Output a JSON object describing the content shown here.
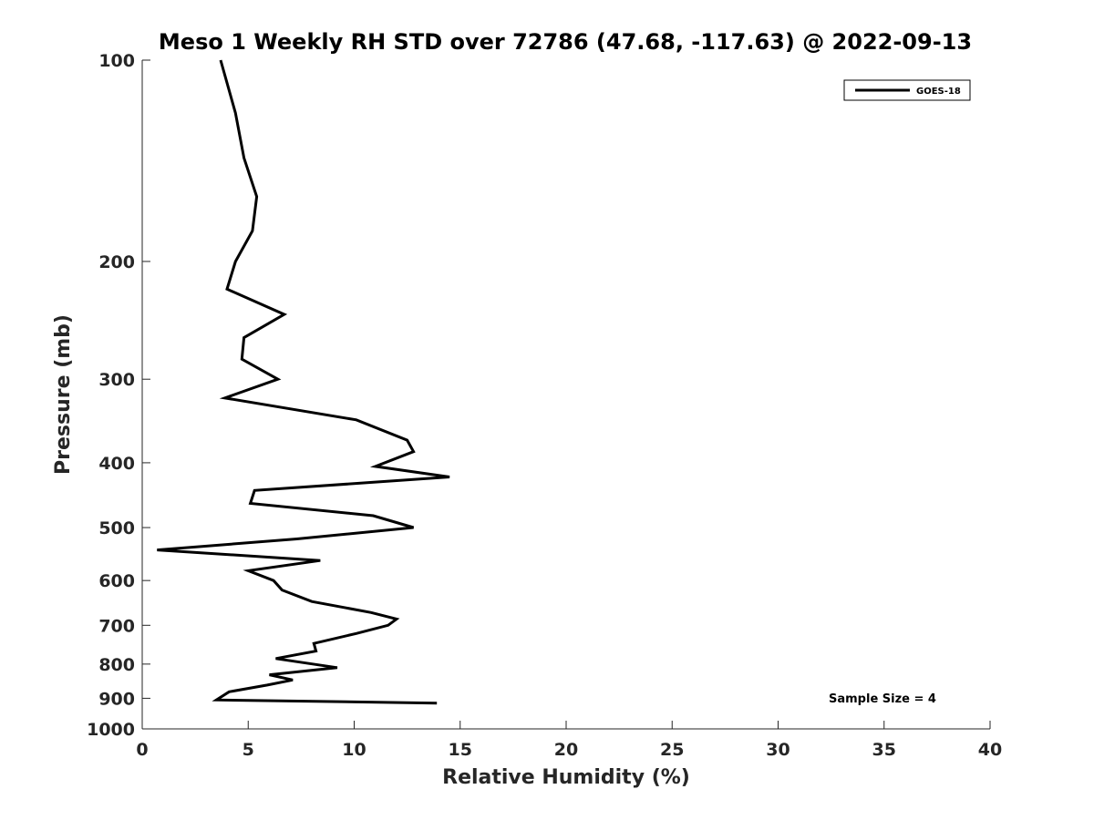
{
  "chart_data": {
    "type": "line",
    "title": "Meso 1 Weekly RH STD over 72786 (47.68, -117.63) @ 2022-09-13",
    "xlabel": "Relative Humidity (%)",
    "ylabel": "Pressure (mb)",
    "xlim": [
      0,
      40
    ],
    "ylim": [
      100,
      1000
    ],
    "yscale": "log",
    "yreversed": true,
    "x_ticks": [
      0,
      5,
      10,
      15,
      20,
      25,
      30,
      35,
      40
    ],
    "y_ticks": [
      100,
      200,
      300,
      400,
      500,
      600,
      700,
      800,
      900,
      1000
    ],
    "legend": {
      "position": "top-right",
      "entries": [
        "GOES-18"
      ]
    },
    "annotation": "Sample Size = 4",
    "series": [
      {
        "name": "GOES-18",
        "color": "#000000",
        "points": [
          [
            3.7,
            100
          ],
          [
            4.4,
            120
          ],
          [
            4.8,
            140
          ],
          [
            5.4,
            160
          ],
          [
            5.2,
            180
          ],
          [
            4.4,
            200
          ],
          [
            4.0,
            220
          ],
          [
            6.7,
            240
          ],
          [
            4.8,
            260
          ],
          [
            4.7,
            280
          ],
          [
            6.4,
            300
          ],
          [
            3.9,
            320
          ],
          [
            10.1,
            345
          ],
          [
            12.5,
            370
          ],
          [
            12.8,
            385
          ],
          [
            11.0,
            405
          ],
          [
            14.5,
            420
          ],
          [
            5.3,
            440
          ],
          [
            5.1,
            460
          ],
          [
            10.9,
            480
          ],
          [
            12.8,
            500
          ],
          [
            7.3,
            520
          ],
          [
            0.7,
            540
          ],
          [
            8.4,
            560
          ],
          [
            5.0,
            580
          ],
          [
            6.2,
            600
          ],
          [
            6.6,
            620
          ],
          [
            8.0,
            645
          ],
          [
            10.8,
            670
          ],
          [
            12.0,
            685
          ],
          [
            11.6,
            700
          ],
          [
            10.1,
            720
          ],
          [
            8.1,
            745
          ],
          [
            8.2,
            765
          ],
          [
            6.3,
            785
          ],
          [
            9.2,
            810
          ],
          [
            6.0,
            830
          ],
          [
            7.1,
            845
          ],
          [
            5.9,
            860
          ],
          [
            4.1,
            880
          ],
          [
            3.5,
            905
          ],
          [
            13.9,
            915
          ]
        ]
      }
    ]
  }
}
